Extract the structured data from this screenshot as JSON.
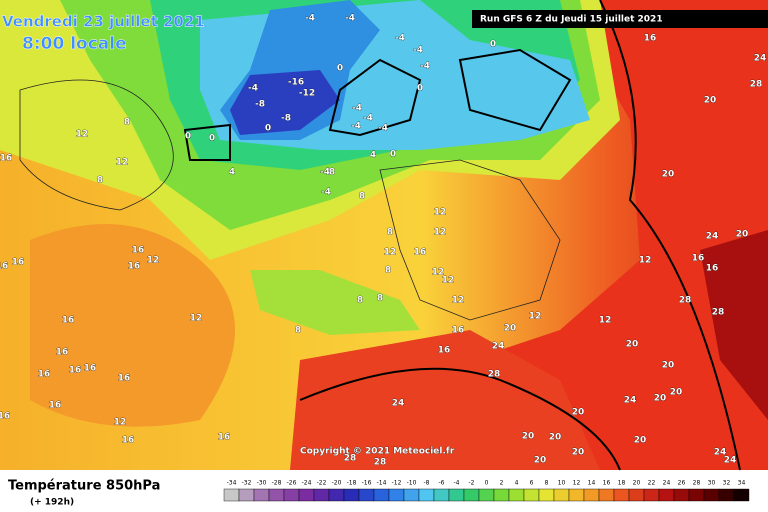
{
  "header": {
    "date": "Vendredi 23 juillet 2021",
    "time": "8:00 locale",
    "run": "Run GFS 6 Z du Jeudi 15 juillet 2021",
    "copyright": "Copyright © 2021 Meteociel.fr"
  },
  "footer": {
    "title": "Température 850hPa",
    "lead": "(+ 192h)"
  },
  "colorbar": [
    -34,
    -32,
    -30,
    -28,
    -26,
    -24,
    -22,
    -20,
    -18,
    -16,
    -14,
    -12,
    -10,
    -8,
    -6,
    -4,
    -2,
    0,
    2,
    4,
    6,
    8,
    10,
    12,
    14,
    16,
    18,
    20,
    22,
    24,
    26,
    28,
    30,
    32,
    34
  ],
  "map_labels": [
    -4,
    -4,
    -4,
    -4,
    -4,
    0,
    16,
    24,
    28,
    20,
    0,
    -16,
    -12,
    -8,
    -8,
    -4,
    0,
    -4,
    -4,
    -4,
    -4,
    0,
    0,
    0,
    4,
    4,
    0,
    -4,
    8,
    -4,
    8,
    8,
    12,
    16,
    12,
    8,
    12,
    12,
    8,
    12,
    16,
    12,
    20,
    24,
    20,
    16,
    16,
    12,
    28,
    28,
    12,
    12,
    16,
    20,
    12,
    12,
    20,
    20,
    20,
    20,
    24,
    8,
    8,
    8,
    8,
    12,
    16,
    12,
    16,
    16,
    16,
    16,
    16,
    16,
    16,
    16,
    16,
    16,
    12,
    16,
    16,
    16,
    16,
    24,
    28,
    24,
    20,
    20,
    20,
    20,
    20,
    20,
    24,
    24,
    28,
    28
  ]
}
